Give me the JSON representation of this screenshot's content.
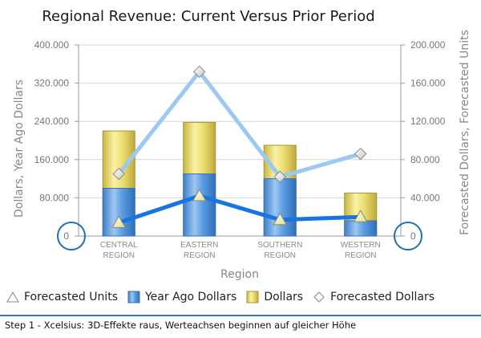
{
  "chart_data": {
    "type": "bar",
    "title": "Regional Revenue: Current Versus Prior Period",
    "xlabel": "Region",
    "ylabel": "Dollars, Year Ago Dollars",
    "y2label": "Forecasted Dollars, Forecasted Units",
    "categories": [
      [
        "CENTRAL",
        "REGION"
      ],
      [
        "EASTERN",
        "REGION"
      ],
      [
        "SOUTHERN",
        "REGION"
      ],
      [
        "WESTERN",
        "REGION"
      ]
    ],
    "ylim": [
      0,
      400000
    ],
    "y2lim": [
      0,
      200000
    ],
    "yticks": [
      "0",
      "80.000",
      "160.000",
      "240.000",
      "320.000",
      "400.000"
    ],
    "y2ticks": [
      "0",
      "40.000",
      "80.000",
      "120.000",
      "160.000",
      "200.000"
    ],
    "grid": true,
    "legend_position": "bottom",
    "series": [
      {
        "name": "Year Ago Dollars",
        "kind": "bar",
        "axis": "left",
        "values": [
          100000,
          130000,
          120000,
          32000
        ],
        "color": "#5b9be0"
      },
      {
        "name": "Dollars",
        "kind": "bar",
        "axis": "left",
        "values": [
          220000,
          238000,
          190000,
          90000
        ],
        "color": "#e9d96a"
      },
      {
        "name": "Forecasted Units",
        "kind": "line",
        "axis": "right",
        "values": [
          14000,
          42000,
          17000,
          20000
        ],
        "color": "#1874e3"
      },
      {
        "name": "Forecasted Dollars",
        "kind": "line",
        "axis": "right",
        "values": [
          65000,
          172000,
          62000,
          86000
        ],
        "color": "#9cc8f4"
      }
    ]
  },
  "legend": [
    {
      "key": "forecasted-units",
      "label": "Forecasted Units"
    },
    {
      "key": "year-ago-dollars",
      "label": "Year Ago Dollars"
    },
    {
      "key": "dollars",
      "label": "Dollars"
    },
    {
      "key": "forecasted-dollars",
      "label": "Forecasted Dollars"
    }
  ],
  "footer": "Step 1 - Xcelsius: 3D-Effekte raus, Werteachsen beginnen auf gleicher Höhe",
  "accent_color": "#2e75b6"
}
